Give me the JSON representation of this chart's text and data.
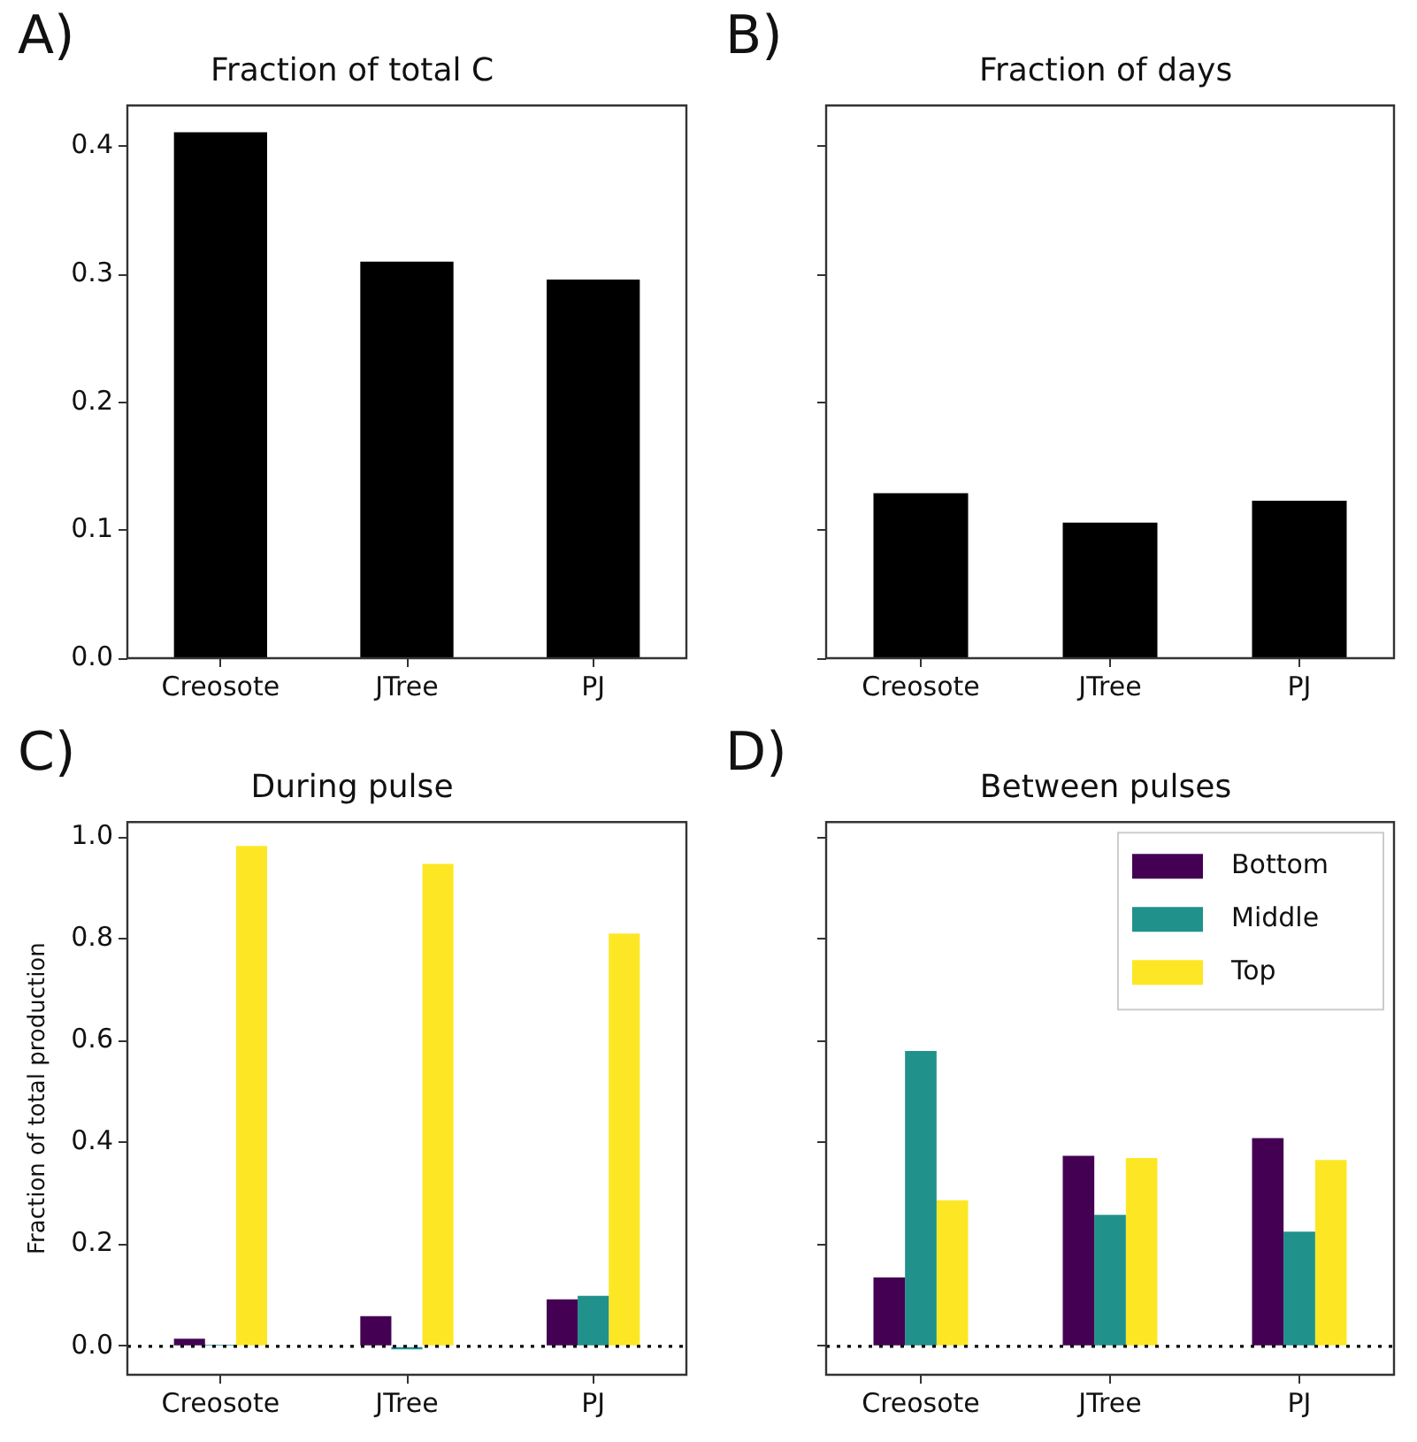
{
  "chart_data": [
    {
      "type": "bar",
      "title": "Fraction of total C",
      "annotations": [
        "A)"
      ],
      "categories": [
        "Creosote",
        "JTree",
        "PJ"
      ],
      "values": [
        0.411,
        0.31,
        0.296
      ],
      "color": "#000000",
      "ylim": [
        0,
        0.432
      ],
      "yticks": [
        {
          "value": 0,
          "label": "0.0"
        },
        {
          "value": 0.1,
          "label": "0.1"
        },
        {
          "value": 0.2,
          "label": "0.2"
        },
        {
          "value": 0.3,
          "label": "0.3"
        },
        {
          "value": 0.4,
          "label": "0.4"
        }
      ],
      "grid": false,
      "legend": false
    },
    {
      "type": "bar",
      "title": "Fraction of days",
      "annotations": [
        "B)"
      ],
      "categories": [
        "Creosote",
        "JTree",
        "PJ"
      ],
      "values": [
        0.129,
        0.106,
        0.123
      ],
      "color": "#000000",
      "ylim": [
        0,
        0.432
      ],
      "yticks": [
        0,
        0.1,
        0.2,
        0.3,
        0.4
      ],
      "tick_labels": "x",
      "grid": false,
      "legend": false
    },
    {
      "type": "bar",
      "title": "During pulse",
      "annotations": [
        "C)"
      ],
      "ylabel": "Fraction of total production",
      "categories": [
        "Creosote",
        "JTree",
        "PJ"
      ],
      "series": [
        {
          "color": "#440154",
          "values": [
            0.015,
            0.059,
            0.092
          ]
        },
        {
          "color": "#21918c",
          "values": [
            0.003,
            -0.006,
            0.099
          ]
        },
        {
          "color": "#fde725",
          "values": [
            0.983,
            0.948,
            0.811
          ]
        }
      ],
      "ylim": [
        -0.056,
        1.03
      ],
      "yticks": [
        {
          "value": 0,
          "label": "0.0"
        },
        {
          "value": 0.2,
          "label": "0.2"
        },
        {
          "value": 0.4,
          "label": "0.4"
        },
        {
          "value": 0.6,
          "label": "0.6"
        },
        {
          "value": 0.8,
          "label": "0.8"
        },
        {
          "value": 1,
          "label": "1.0"
        }
      ],
      "ref_lines": [
        {
          "axis": "y",
          "value": 0,
          "color": "#000000",
          "line_style": "dotted"
        }
      ],
      "grid": false,
      "legend": false
    },
    {
      "type": "bar",
      "title": "Between pulses",
      "annotations": [
        "D)"
      ],
      "categories": [
        "Creosote",
        "JTree",
        "PJ"
      ],
      "series": [
        {
          "name": "Bottom",
          "color": "#440154",
          "values": [
            0.135,
            0.374,
            0.409
          ]
        },
        {
          "name": "Middle",
          "color": "#21918c",
          "values": [
            0.58,
            0.258,
            0.225
          ]
        },
        {
          "name": "Top",
          "color": "#fde725",
          "values": [
            0.287,
            0.37,
            0.366
          ]
        }
      ],
      "ylim": [
        -0.056,
        1.03
      ],
      "yticks": [
        0,
        0.2,
        0.4,
        0.6,
        0.8,
        1
      ],
      "tick_labels": "x",
      "ref_lines": [
        {
          "axis": "y",
          "value": 0,
          "color": "#000000",
          "line_style": "dotted"
        }
      ],
      "grid": false,
      "legend": "top right"
    }
  ]
}
